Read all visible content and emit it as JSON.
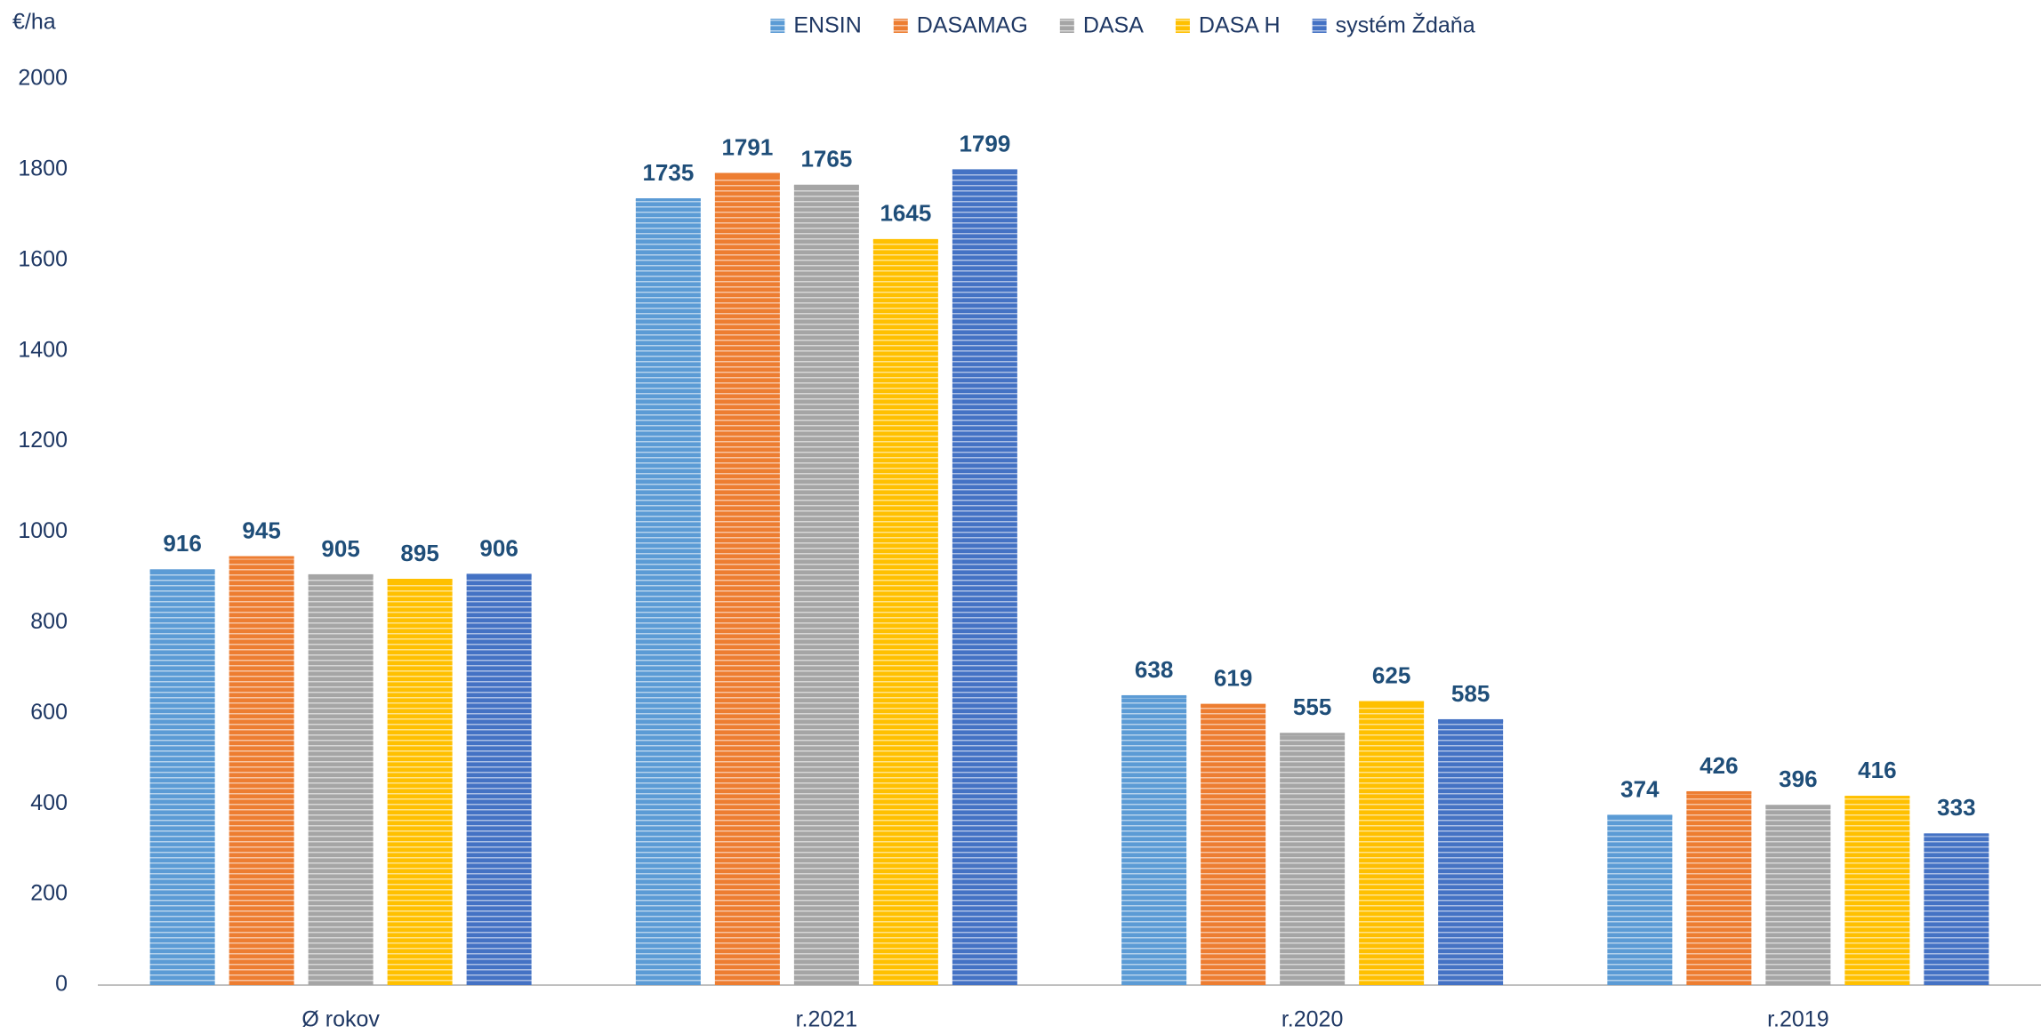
{
  "chart_data": {
    "type": "bar",
    "y_label": "€/ha",
    "categories": [
      "Ø rokov",
      "r.2021",
      "r.2020",
      "r.2019"
    ],
    "series": [
      {
        "name": "ENSIN",
        "color": "#5b9bd5",
        "values": [
          916,
          1735,
          638,
          374
        ]
      },
      {
        "name": "DASAMAG",
        "color": "#ed7d31",
        "values": [
          945,
          1791,
          619,
          426
        ]
      },
      {
        "name": "DASA",
        "color": "#a5a5a5",
        "values": [
          905,
          1765,
          555,
          396
        ]
      },
      {
        "name": "DASA H",
        "color": "#ffc000",
        "values": [
          895,
          1645,
          625,
          416
        ]
      },
      {
        "name": "systém Ždaňa",
        "color": "#4472c4",
        "values": [
          906,
          1799,
          585,
          333
        ]
      }
    ],
    "ylim": [
      0,
      2000
    ],
    "yticks": [
      0,
      200,
      400,
      600,
      800,
      1000,
      1200,
      1400,
      1600,
      1800,
      2000
    ],
    "grid": false,
    "legend": "top"
  }
}
